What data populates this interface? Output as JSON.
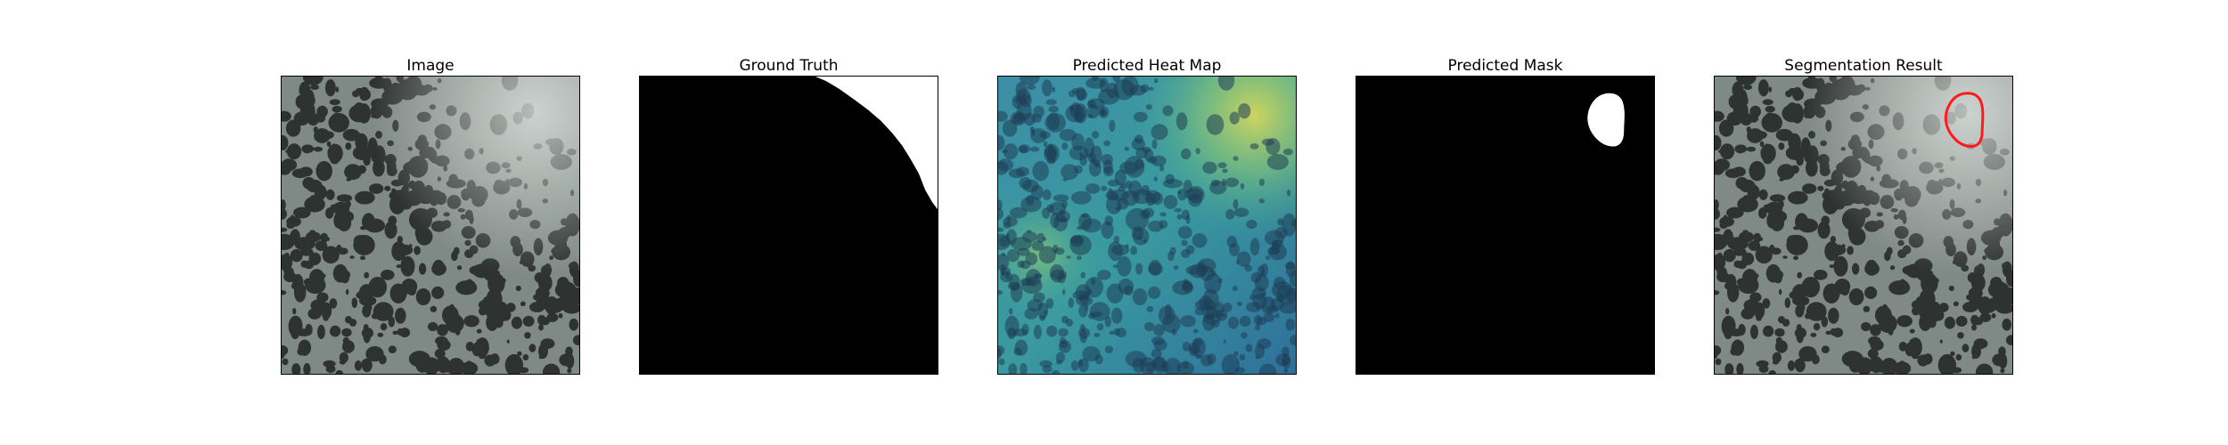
{
  "panels": [
    {
      "title": "Image"
    },
    {
      "title": "Ground Truth"
    },
    {
      "title": "Predicted Heat Map"
    },
    {
      "title": "Predicted Mask"
    },
    {
      "title": "Segmentation Result"
    }
  ],
  "colors": {
    "texture_base": "#7f8985",
    "texture_spot": "#2e3331",
    "mask_background": "#000000",
    "mask_foreground": "#ffffff",
    "heatmap_low": "#2f6f9a",
    "heatmap_mid": "#3aa397",
    "heatmap_high": "#d6d85a",
    "contour": "#ff1a1a"
  }
}
